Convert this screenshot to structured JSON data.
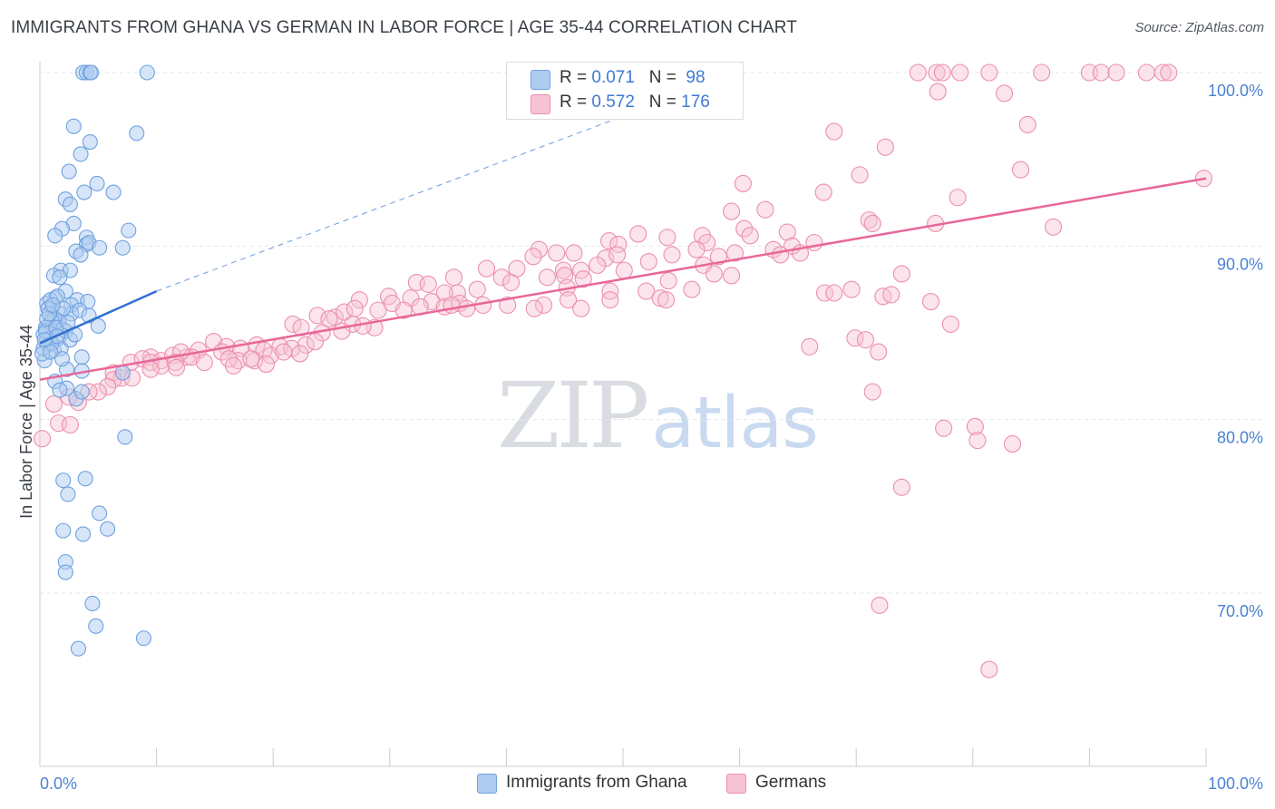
{
  "header": {
    "title": "IMMIGRANTS FROM GHANA VS GERMAN IN LABOR FORCE | AGE 35-44 CORRELATION CHART",
    "source": "Source: ZipAtlas.com"
  },
  "legend": {
    "row1": {
      "r_label": "R = ",
      "r_value": "0.071",
      "n_label": "N = ",
      "n_value": "98"
    },
    "row2": {
      "r_label": "R = ",
      "r_value": "0.572",
      "n_label": "N = ",
      "n_value": "176"
    }
  },
  "watermark": {
    "zip": "ZIP",
    "atlas": "atlas"
  },
  "colors": {
    "ghana": "#6fa1e0",
    "ghana_fill": "#aecbf0",
    "germans": "#ec8fae",
    "germans_fill": "#f7c3d3",
    "ghana_line": "#2f6fd0",
    "germans_line": "#e8679a",
    "tick_label": "#4a82d4"
  },
  "chart_data": {
    "type": "scatter",
    "title": "IMMIGRANTS FROM GHANA VS GERMAN IN LABOR FORCE | AGE 35-44 CORRELATION CHART",
    "ylabel": "In Labor Force | Age 35-44",
    "xlim": [
      0,
      100
    ],
    "ylim": [
      59,
      101
    ],
    "x_tick_labels": [
      "0.0%",
      "100.0%"
    ],
    "y_ticks": [
      70,
      80,
      90,
      100
    ],
    "y_tick_labels": [
      "70.0%",
      "80.0%",
      "90.0%",
      "100.0%"
    ],
    "grid": true,
    "legend_position": "top-center",
    "series": [
      {
        "name": "Immigrants from Ghana",
        "r": 0.071,
        "n": 98,
        "trend": {
          "x": [
            0,
            10
          ],
          "y": [
            84.4,
            87.4
          ]
        },
        "trend_extension": {
          "x": [
            10,
            60
          ],
          "y": [
            87.4,
            100.0
          ]
        },
        "points": [
          [
            3.7,
            100.0
          ],
          [
            4.0,
            100.0
          ],
          [
            4.3,
            100.0
          ],
          [
            4.4,
            100.0
          ],
          [
            9.2,
            100.0
          ],
          [
            2.9,
            96.9
          ],
          [
            4.3,
            96.0
          ],
          [
            8.3,
            96.5
          ],
          [
            3.5,
            95.3
          ],
          [
            2.5,
            94.3
          ],
          [
            4.9,
            93.6
          ],
          [
            3.8,
            93.1
          ],
          [
            6.3,
            93.1
          ],
          [
            2.2,
            92.7
          ],
          [
            2.6,
            92.4
          ],
          [
            2.9,
            91.3
          ],
          [
            7.6,
            90.9
          ],
          [
            1.9,
            91.0
          ],
          [
            1.3,
            90.6
          ],
          [
            4.0,
            90.5
          ],
          [
            4.0,
            90.1
          ],
          [
            4.2,
            90.2
          ],
          [
            7.1,
            89.9
          ],
          [
            5.1,
            89.9
          ],
          [
            3.1,
            89.7
          ],
          [
            3.5,
            89.5
          ],
          [
            1.8,
            88.6
          ],
          [
            2.6,
            88.6
          ],
          [
            1.2,
            88.3
          ],
          [
            1.7,
            88.2
          ],
          [
            2.2,
            87.4
          ],
          [
            1.3,
            87.0
          ],
          [
            0.6,
            86.7
          ],
          [
            0.9,
            86.9
          ],
          [
            1.5,
            87.1
          ],
          [
            3.2,
            86.9
          ],
          [
            2.7,
            86.6
          ],
          [
            4.1,
            86.8
          ],
          [
            0.7,
            86.4
          ],
          [
            1.7,
            86.1
          ],
          [
            2.7,
            86.1
          ],
          [
            3.4,
            86.3
          ],
          [
            1.2,
            85.9
          ],
          [
            1.6,
            85.7
          ],
          [
            4.2,
            86.0
          ],
          [
            0.8,
            85.5
          ],
          [
            1.0,
            85.7
          ],
          [
            0.5,
            85.3
          ],
          [
            2.0,
            85.2
          ],
          [
            5.0,
            85.4
          ],
          [
            0.3,
            84.9
          ],
          [
            0.6,
            84.6
          ],
          [
            0.9,
            84.7
          ],
          [
            1.6,
            84.7
          ],
          [
            2.2,
            85.1
          ],
          [
            0.7,
            84.3
          ],
          [
            1.2,
            84.0
          ],
          [
            1.8,
            84.1
          ],
          [
            0.4,
            83.4
          ],
          [
            3.6,
            83.6
          ],
          [
            2.3,
            82.9
          ],
          [
            3.6,
            82.8
          ],
          [
            7.1,
            82.7
          ],
          [
            1.3,
            82.2
          ],
          [
            2.3,
            81.8
          ],
          [
            3.1,
            81.2
          ],
          [
            3.6,
            81.6
          ],
          [
            1.7,
            81.7
          ],
          [
            7.3,
            79.0
          ],
          [
            2.0,
            76.5
          ],
          [
            3.9,
            76.6
          ],
          [
            2.4,
            75.7
          ],
          [
            5.1,
            74.6
          ],
          [
            2.0,
            73.6
          ],
          [
            3.7,
            73.4
          ],
          [
            5.8,
            73.7
          ],
          [
            2.2,
            71.8
          ],
          [
            2.2,
            71.2
          ],
          [
            4.5,
            69.4
          ],
          [
            4.8,
            68.1
          ],
          [
            3.3,
            66.8
          ],
          [
            8.9,
            67.4
          ],
          [
            0.3,
            84.1
          ],
          [
            0.5,
            85.1
          ],
          [
            0.2,
            83.8
          ],
          [
            1.0,
            84.4
          ],
          [
            0.6,
            85.8
          ],
          [
            0.8,
            86.1
          ],
          [
            1.4,
            85.3
          ],
          [
            2.6,
            84.6
          ],
          [
            2.0,
            86.4
          ],
          [
            1.1,
            86.6
          ],
          [
            0.4,
            84.6
          ],
          [
            1.5,
            84.8
          ],
          [
            3.0,
            84.9
          ],
          [
            2.4,
            85.6
          ],
          [
            0.9,
            83.9
          ],
          [
            1.9,
            83.5
          ]
        ]
      },
      {
        "name": "Germans",
        "r": 0.572,
        "n": 176,
        "trend": {
          "x": [
            0,
            100
          ],
          "y": [
            82.3,
            93.9
          ]
        },
        "points": [
          [
            75.3,
            100.0
          ],
          [
            76.9,
            100.0
          ],
          [
            77.4,
            100.0
          ],
          [
            78.9,
            100.0
          ],
          [
            81.4,
            100.0
          ],
          [
            85.9,
            100.0
          ],
          [
            90.0,
            100.0
          ],
          [
            91.0,
            100.0
          ],
          [
            92.3,
            100.0
          ],
          [
            94.9,
            100.0
          ],
          [
            96.3,
            100.0
          ],
          [
            96.8,
            100.0
          ],
          [
            77.0,
            98.9
          ],
          [
            82.7,
            98.8
          ],
          [
            84.7,
            97.0
          ],
          [
            68.1,
            96.6
          ],
          [
            72.5,
            95.7
          ],
          [
            84.1,
            94.4
          ],
          [
            99.8,
            93.9
          ],
          [
            60.3,
            93.6
          ],
          [
            70.3,
            94.1
          ],
          [
            67.2,
            93.1
          ],
          [
            78.7,
            92.8
          ],
          [
            62.2,
            92.1
          ],
          [
            59.3,
            92.0
          ],
          [
            71.1,
            91.5
          ],
          [
            76.8,
            91.3
          ],
          [
            60.4,
            91.0
          ],
          [
            71.4,
            91.3
          ],
          [
            64.1,
            90.8
          ],
          [
            86.9,
            91.1
          ],
          [
            56.8,
            90.6
          ],
          [
            60.9,
            90.6
          ],
          [
            66.4,
            90.2
          ],
          [
            64.5,
            90.0
          ],
          [
            51.3,
            90.7
          ],
          [
            53.8,
            90.5
          ],
          [
            57.2,
            90.2
          ],
          [
            48.8,
            90.3
          ],
          [
            49.6,
            90.1
          ],
          [
            54.2,
            89.5
          ],
          [
            56.3,
            89.8
          ],
          [
            59.6,
            89.6
          ],
          [
            62.9,
            89.8
          ],
          [
            63.5,
            89.5
          ],
          [
            65.2,
            89.6
          ],
          [
            52.2,
            89.1
          ],
          [
            48.5,
            89.3
          ],
          [
            49.5,
            89.5
          ],
          [
            47.8,
            88.9
          ],
          [
            56.9,
            88.9
          ],
          [
            58.2,
            89.4
          ],
          [
            42.8,
            89.8
          ],
          [
            45.8,
            89.6
          ],
          [
            44.3,
            89.6
          ],
          [
            46.4,
            88.6
          ],
          [
            44.9,
            88.6
          ],
          [
            42.3,
            89.4
          ],
          [
            40.9,
            88.7
          ],
          [
            38.3,
            88.7
          ],
          [
            35.5,
            88.2
          ],
          [
            39.6,
            88.2
          ],
          [
            43.5,
            88.2
          ],
          [
            45.0,
            88.3
          ],
          [
            46.6,
            88.1
          ],
          [
            50.1,
            88.6
          ],
          [
            52.0,
            87.4
          ],
          [
            53.9,
            88.0
          ],
          [
            57.8,
            88.4
          ],
          [
            59.3,
            88.3
          ],
          [
            73.9,
            88.4
          ],
          [
            32.3,
            87.9
          ],
          [
            33.3,
            87.8
          ],
          [
            35.8,
            87.3
          ],
          [
            34.7,
            87.3
          ],
          [
            37.5,
            87.5
          ],
          [
            40.4,
            87.9
          ],
          [
            45.2,
            87.6
          ],
          [
            48.9,
            87.4
          ],
          [
            67.3,
            87.3
          ],
          [
            68.1,
            87.3
          ],
          [
            69.6,
            87.5
          ],
          [
            72.3,
            87.1
          ],
          [
            73.0,
            87.2
          ],
          [
            76.4,
            86.8
          ],
          [
            29.9,
            87.1
          ],
          [
            31.8,
            87.0
          ],
          [
            27.4,
            86.9
          ],
          [
            29.0,
            86.3
          ],
          [
            30.2,
            86.7
          ],
          [
            33.6,
            86.8
          ],
          [
            34.7,
            86.5
          ],
          [
            36.0,
            86.7
          ],
          [
            38.0,
            86.6
          ],
          [
            40.1,
            86.6
          ],
          [
            43.2,
            86.6
          ],
          [
            45.3,
            86.9
          ],
          [
            42.4,
            86.4
          ],
          [
            46.4,
            86.4
          ],
          [
            48.9,
            86.9
          ],
          [
            53.2,
            87.0
          ],
          [
            55.9,
            87.5
          ],
          [
            25.3,
            85.9
          ],
          [
            26.1,
            86.2
          ],
          [
            27.0,
            86.4
          ],
          [
            23.8,
            86.0
          ],
          [
            24.8,
            85.8
          ],
          [
            26.8,
            85.5
          ],
          [
            28.7,
            85.3
          ],
          [
            31.2,
            86.3
          ],
          [
            32.6,
            86.5
          ],
          [
            35.3,
            86.6
          ],
          [
            36.6,
            86.4
          ],
          [
            53.7,
            86.9
          ],
          [
            21.7,
            85.5
          ],
          [
            22.4,
            85.3
          ],
          [
            24.2,
            85.0
          ],
          [
            25.9,
            85.1
          ],
          [
            27.7,
            85.4
          ],
          [
            78.1,
            85.5
          ],
          [
            14.9,
            84.5
          ],
          [
            16.0,
            84.2
          ],
          [
            17.2,
            84.1
          ],
          [
            18.6,
            84.3
          ],
          [
            19.2,
            84.0
          ],
          [
            20.6,
            84.2
          ],
          [
            21.6,
            84.1
          ],
          [
            22.8,
            84.3
          ],
          [
            23.6,
            84.5
          ],
          [
            13.6,
            84.0
          ],
          [
            15.6,
            83.9
          ],
          [
            17.0,
            83.4
          ],
          [
            18.4,
            83.4
          ],
          [
            19.8,
            83.7
          ],
          [
            20.9,
            83.9
          ],
          [
            22.3,
            83.8
          ],
          [
            12.6,
            83.6
          ],
          [
            13.0,
            83.6
          ],
          [
            14.1,
            83.3
          ],
          [
            9.5,
            83.6
          ],
          [
            10.4,
            83.4
          ],
          [
            11.4,
            83.7
          ],
          [
            12.1,
            83.9
          ],
          [
            7.8,
            83.3
          ],
          [
            8.8,
            83.5
          ],
          [
            9.5,
            83.3
          ],
          [
            10.4,
            83.1
          ],
          [
            11.6,
            83.3
          ],
          [
            16.2,
            83.5
          ],
          [
            16.6,
            83.1
          ],
          [
            18.1,
            83.5
          ],
          [
            19.4,
            83.2
          ],
          [
            6.3,
            82.7
          ],
          [
            7.0,
            82.4
          ],
          [
            7.9,
            82.4
          ],
          [
            9.5,
            82.9
          ],
          [
            11.7,
            83.0
          ],
          [
            6.3,
            82.3
          ],
          [
            5.8,
            81.9
          ],
          [
            5.0,
            81.6
          ],
          [
            4.2,
            81.6
          ],
          [
            3.3,
            81.0
          ],
          [
            2.5,
            81.3
          ],
          [
            1.2,
            80.9
          ],
          [
            1.6,
            79.8
          ],
          [
            0.2,
            78.9
          ],
          [
            2.6,
            79.7
          ],
          [
            66.0,
            84.2
          ],
          [
            69.9,
            84.7
          ],
          [
            70.8,
            84.6
          ],
          [
            71.9,
            83.9
          ],
          [
            71.4,
            81.6
          ],
          [
            77.5,
            79.5
          ],
          [
            80.2,
            79.6
          ],
          [
            80.4,
            78.8
          ],
          [
            83.4,
            78.6
          ],
          [
            73.9,
            76.1
          ],
          [
            72.0,
            69.3
          ],
          [
            81.4,
            65.6
          ]
        ]
      }
    ]
  },
  "bottom_legend": [
    {
      "label": "Immigrants from Ghana"
    },
    {
      "label": "Germans"
    }
  ]
}
